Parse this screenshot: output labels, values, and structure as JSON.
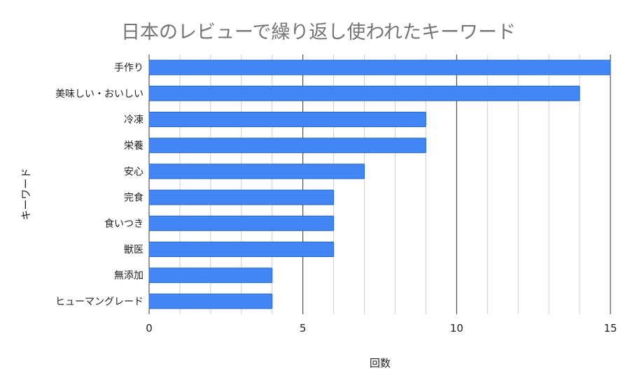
{
  "chart_data": {
    "type": "bar",
    "orientation": "horizontal",
    "title": "日本のレビューで繰り返し使われたキーワード",
    "xlabel": "回数",
    "ylabel": "キーワード",
    "categories": [
      "手作り",
      "美味しい・おいしい",
      "冷凍",
      "栄養",
      "安心",
      "完食",
      "食いつき",
      "獣医",
      "無添加",
      "ヒューマングレード"
    ],
    "values": [
      15,
      14,
      9,
      9,
      7,
      6,
      6,
      6,
      4,
      4
    ],
    "xlim": [
      0,
      15
    ],
    "major_ticks": [
      0,
      5,
      10,
      15
    ],
    "minor_tick_step": 1,
    "grid": true,
    "legend": "none",
    "bar_color": "#4285f4"
  }
}
